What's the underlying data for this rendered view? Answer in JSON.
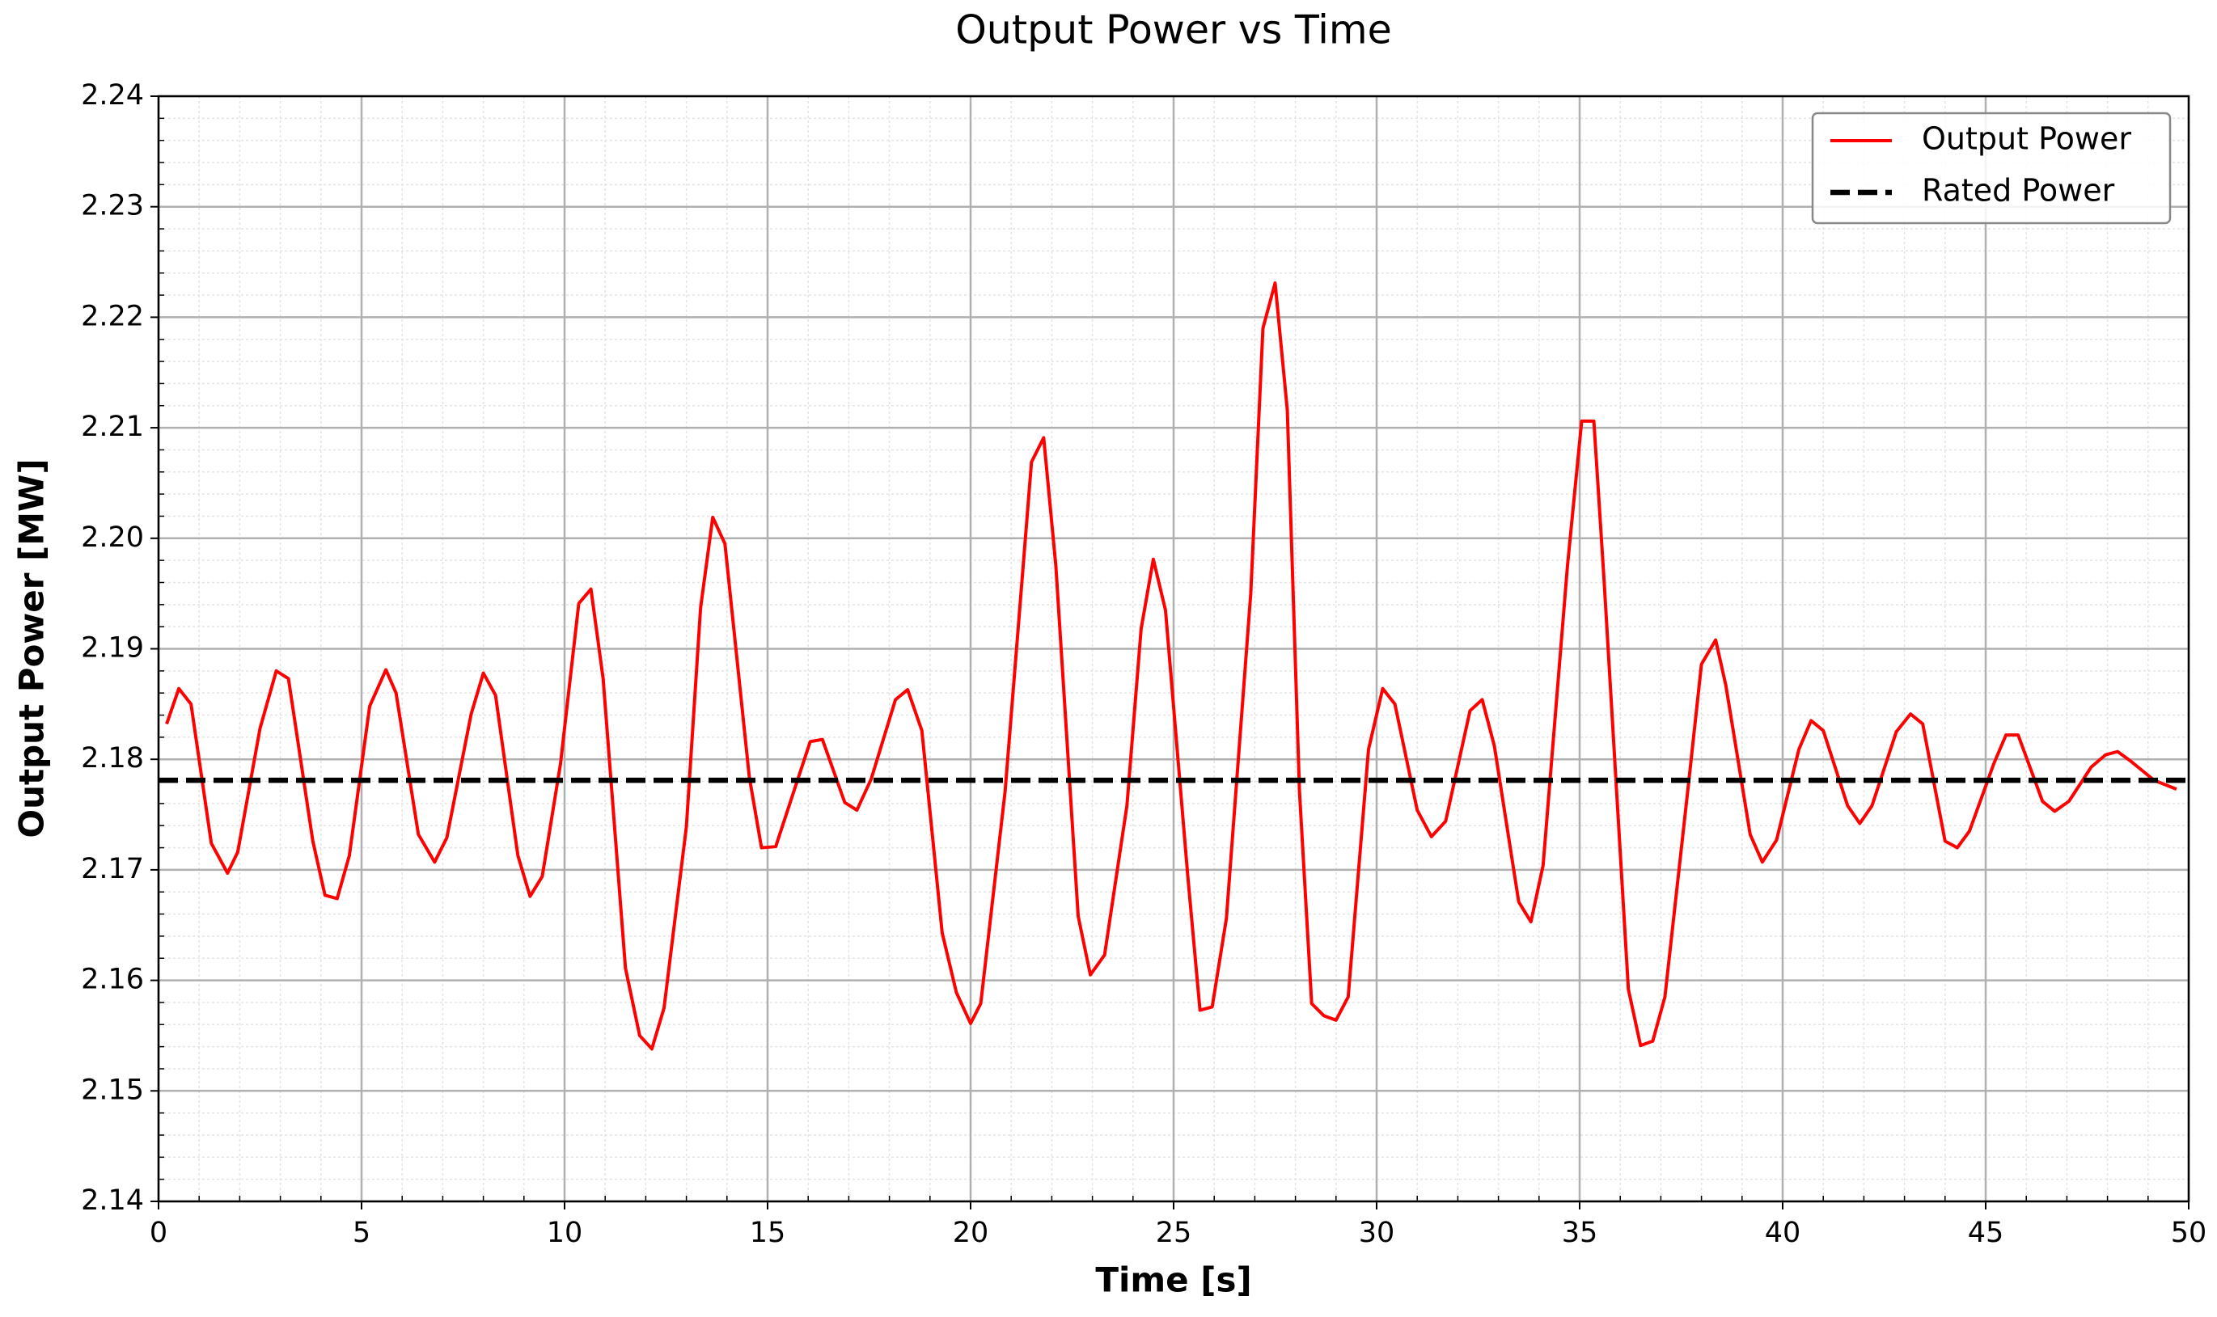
{
  "chart_data": {
    "type": "line",
    "title": "Output Power vs Time",
    "xlabel": "Time [s]",
    "ylabel": "Output Power [MW]",
    "xlim": [
      0,
      50
    ],
    "xticks": [
      0,
      5,
      10,
      15,
      20,
      25,
      30,
      35,
      40,
      45,
      50
    ],
    "ylim": [
      2.14,
      2.24
    ],
    "yticks": [
      2.14,
      2.15,
      2.16,
      2.17,
      2.18,
      2.19,
      {
        "value": 2.2,
        "label": "2.20"
      },
      2.21,
      2.22,
      2.23,
      2.24
    ],
    "grid": true,
    "minor_grid": true,
    "legend": "upper right",
    "series": [
      {
        "name": "Output Power",
        "color": "#ff0000",
        "style": "solid",
        "x": [
          0.2,
          0.5,
          0.8,
          1.3,
          1.7,
          1.95,
          2.5,
          2.9,
          3.2,
          3.8,
          4.1,
          4.4,
          4.7,
          5.2,
          5.6,
          5.85,
          6.4,
          6.8,
          7.1,
          7.7,
          8.0,
          8.3,
          8.85,
          9.15,
          9.45,
          9.9,
          10.35,
          10.65,
          10.95,
          11.5,
          11.85,
          12.15,
          12.45,
          13.0,
          13.35,
          13.65,
          13.95,
          14.55,
          14.85,
          15.2,
          15.7,
          16.05,
          16.35,
          16.9,
          17.2,
          17.55,
          18.15,
          18.45,
          18.8,
          19.3,
          19.65,
          20.0,
          20.25,
          20.85,
          21.5,
          21.8,
          22.1,
          22.65,
          22.95,
          23.3,
          23.85,
          24.2,
          24.5,
          24.8,
          25.35,
          25.65,
          25.95,
          26.3,
          26.9,
          27.2,
          27.5,
          27.8,
          28.1,
          28.4,
          28.7,
          29.0,
          29.3,
          29.8,
          30.15,
          30.45,
          31.0,
          31.35,
          31.7,
          32.3,
          32.6,
          32.9,
          33.5,
          33.8,
          34.1,
          34.7,
          35.05,
          35.35,
          35.6,
          36.2,
          36.5,
          36.8,
          37.1,
          37.7,
          38.0,
          38.35,
          38.6,
          39.2,
          39.5,
          39.85,
          40.4,
          40.7,
          41.0,
          41.6,
          41.9,
          42.2,
          42.8,
          43.15,
          43.45,
          44.0,
          44.3,
          44.6,
          45.2,
          45.5,
          45.8,
          46.4,
          46.7,
          47.05,
          47.6,
          47.95,
          48.25,
          48.55,
          48.85,
          49.15,
          49.7
        ],
        "values": [
          2.1832,
          2.1864,
          2.185,
          2.1724,
          2.1697,
          2.1716,
          2.1828,
          2.188,
          2.1873,
          2.1726,
          2.1677,
          2.1674,
          2.1713,
          2.1848,
          2.1881,
          2.186,
          2.1732,
          2.1707,
          2.1729,
          2.1841,
          2.1878,
          2.1858,
          2.1713,
          2.1676,
          2.1694,
          2.1796,
          2.1941,
          2.1954,
          2.1873,
          2.1611,
          2.155,
          2.1538,
          2.1575,
          2.1739,
          2.1937,
          2.2019,
          2.1995,
          2.1784,
          2.172,
          2.1721,
          2.1777,
          2.1816,
          2.1818,
          2.1761,
          2.1754,
          2.1782,
          2.1854,
          2.1863,
          2.1826,
          2.1643,
          2.1589,
          2.1561,
          2.1579,
          2.1771,
          2.2069,
          2.2091,
          2.1975,
          2.1658,
          2.1605,
          2.1623,
          2.1758,
          2.1918,
          2.1981,
          2.1935,
          2.1694,
          2.1573,
          2.1576,
          2.1656,
          2.195,
          2.219,
          2.2231,
          2.2116,
          2.1771,
          2.1579,
          2.1568,
          2.1564,
          2.1585,
          2.1809,
          2.1864,
          2.185,
          2.1754,
          2.173,
          2.1744,
          2.1844,
          2.1854,
          2.1812,
          2.1671,
          2.1653,
          2.1704,
          2.1975,
          2.2106,
          2.2106,
          2.1963,
          2.1592,
          2.1541,
          2.1545,
          2.1585,
          2.1784,
          2.1886,
          2.1908,
          2.1867,
          2.1732,
          2.1707,
          2.1727,
          2.1809,
          2.1835,
          2.1826,
          2.1758,
          2.1742,
          2.1758,
          2.1825,
          2.1841,
          2.1832,
          2.1726,
          2.172,
          2.1735,
          2.1796,
          2.1822,
          2.1822,
          2.1762,
          2.1753,
          2.1762,
          2.1793,
          2.1804,
          2.1807,
          2.1799,
          2.179,
          2.1781,
          2.1773
        ]
      },
      {
        "name": "Rated Power",
        "color": "#000000",
        "style": "dashed",
        "x": [
          0,
          50
        ],
        "values": [
          2.1781,
          2.1781
        ]
      }
    ]
  }
}
